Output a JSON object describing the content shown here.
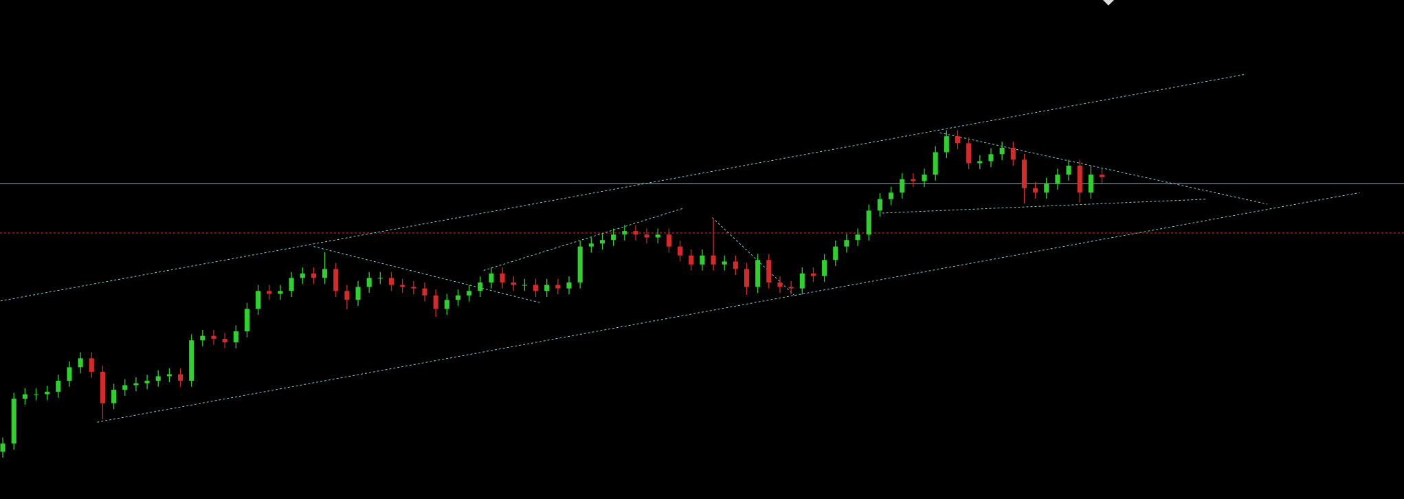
{
  "chart_data": {
    "type": "candlestick",
    "xlim": [
      -0.25,
      126.2
    ],
    "ylim": [
      0,
      100
    ],
    "up_color": "#2fd12f",
    "down_color": "#d42a2a",
    "open": [
      9.5,
      11.1,
      20.1,
      21.0,
      21.0,
      21.5,
      23.7,
      26.4,
      28.2,
      25.5,
      19.2,
      21.9,
      22.8,
      23.2,
      23.7,
      24.6,
      25.0,
      23.7,
      31.8,
      32.7,
      32.1,
      31.4,
      33.6,
      38.1,
      41.7,
      41.1,
      41.7,
      44.3,
      45.2,
      44.3,
      46.1,
      41.7,
      39.9,
      42.5,
      44.3,
      44.3,
      42.9,
      42.5,
      42.2,
      40.8,
      38.1,
      39.9,
      40.8,
      41.7,
      43.4,
      45.2,
      43.4,
      42.9,
      42.9,
      41.7,
      42.9,
      42.2,
      43.4,
      50.6,
      51.2,
      51.9,
      53.0,
      53.7,
      53.0,
      52.4,
      53.0,
      50.6,
      48.8,
      47.0,
      48.8,
      47.0,
      47.6,
      46.1,
      42.5,
      47.9,
      43.4,
      42.5,
      42.2,
      45.2,
      44.7,
      47.9,
      50.6,
      51.9,
      53.0,
      57.8,
      60.1,
      61.4,
      64.1,
      63.7,
      65.0,
      69.5,
      72.7,
      71.3,
      67.3,
      67.7,
      69.1,
      70.4,
      68.0,
      62.3,
      61.4,
      63.2,
      65.0,
      66.8,
      61.4,
      65.0
    ],
    "high": [
      12.3,
      21.3,
      22.2,
      22.2,
      22.7,
      24.9,
      27.6,
      29.4,
      29.4,
      26.7,
      23.1,
      24.0,
      24.4,
      24.9,
      25.8,
      26.2,
      26.2,
      33.0,
      33.9,
      33.9,
      33.3,
      34.8,
      39.3,
      42.9,
      42.9,
      42.9,
      45.5,
      46.4,
      46.4,
      49.5,
      47.3,
      42.9,
      43.7,
      45.5,
      45.5,
      45.5,
      44.1,
      43.7,
      43.4,
      42.0,
      41.1,
      42.0,
      42.9,
      44.6,
      46.4,
      46.4,
      44.6,
      44.1,
      44.1,
      44.1,
      44.1,
      44.6,
      51.8,
      52.4,
      53.1,
      54.2,
      54.9,
      54.9,
      54.2,
      54.2,
      54.2,
      51.8,
      50.0,
      50.0,
      56.3,
      48.8,
      48.8,
      47.3,
      49.1,
      49.1,
      44.6,
      43.7,
      46.4,
      46.4,
      49.1,
      51.8,
      53.1,
      54.2,
      59.0,
      61.3,
      62.6,
      65.3,
      65.3,
      66.2,
      70.7,
      73.9,
      73.9,
      72.5,
      68.9,
      70.3,
      71.6,
      71.6,
      69.2,
      63.5,
      64.4,
      66.2,
      68.0,
      68.0,
      66.7,
      66.2
    ],
    "low": [
      8.3,
      9.9,
      18.9,
      19.8,
      19.8,
      20.3,
      22.5,
      25.2,
      24.3,
      16.0,
      18.0,
      20.7,
      21.6,
      22.0,
      22.5,
      23.4,
      22.5,
      22.5,
      30.6,
      30.9,
      30.2,
      30.2,
      32.4,
      36.9,
      39.9,
      39.9,
      40.5,
      43.1,
      43.1,
      43.1,
      40.5,
      38.0,
      38.7,
      41.3,
      43.1,
      41.7,
      41.3,
      41.0,
      39.6,
      36.5,
      36.9,
      38.7,
      39.6,
      40.5,
      42.2,
      42.2,
      41.7,
      41.7,
      40.5,
      40.5,
      41.0,
      41.0,
      42.2,
      49.4,
      50.0,
      50.7,
      51.8,
      51.8,
      51.2,
      51.2,
      49.4,
      47.6,
      45.8,
      45.8,
      45.8,
      45.8,
      44.9,
      40.9,
      41.3,
      42.2,
      41.3,
      41.0,
      41.0,
      43.5,
      43.5,
      46.7,
      49.4,
      50.7,
      51.8,
      56.6,
      58.9,
      60.2,
      62.5,
      62.5,
      63.8,
      68.3,
      70.1,
      66.1,
      66.1,
      66.5,
      67.9,
      66.8,
      59.2,
      60.2,
      60.2,
      62.0,
      63.8,
      59.4,
      60.2,
      63.3
    ],
    "close": [
      11.1,
      20.1,
      21.0,
      21.0,
      21.5,
      23.7,
      26.4,
      28.2,
      25.5,
      19.2,
      21.9,
      22.8,
      23.2,
      23.7,
      24.6,
      25.0,
      23.7,
      31.8,
      32.7,
      32.1,
      31.4,
      33.6,
      38.1,
      41.7,
      41.1,
      41.7,
      44.3,
      45.2,
      44.3,
      46.1,
      41.7,
      39.9,
      42.5,
      44.3,
      44.3,
      42.9,
      42.5,
      42.2,
      40.8,
      38.1,
      39.9,
      40.8,
      41.7,
      43.4,
      45.2,
      43.4,
      42.9,
      42.9,
      41.7,
      42.9,
      42.2,
      43.4,
      50.6,
      51.2,
      51.9,
      53.0,
      53.7,
      53.0,
      52.4,
      53.0,
      50.6,
      48.8,
      47.0,
      48.8,
      47.0,
      47.6,
      46.1,
      42.5,
      47.9,
      43.4,
      42.5,
      42.2,
      45.2,
      44.7,
      47.9,
      50.6,
      51.9,
      53.0,
      57.8,
      60.1,
      61.4,
      64.1,
      63.7,
      65.0,
      69.5,
      72.7,
      71.3,
      67.3,
      67.7,
      69.1,
      70.4,
      68.0,
      62.3,
      61.4,
      63.2,
      65.0,
      66.8,
      61.4,
      65.0,
      64.5
    ],
    "hlines": [
      {
        "value": 63.2,
        "color": "#8fb4c8",
        "style": "solid"
      },
      {
        "value": 53.3,
        "color": "#d43a2a",
        "style": "dotted"
      }
    ],
    "trendline_color": "#7fd0dc",
    "trendlines": [
      {
        "x": [
          -0.2,
          111.9
        ],
        "values": [
          39.7,
          85.1
        ]
      },
      {
        "x": [
          8.5,
          122.2
        ],
        "values": [
          15.4,
          61.4
        ]
      },
      {
        "x": [
          28.0,
          48.5
        ],
        "values": [
          50.6,
          39.3
        ]
      },
      {
        "x": [
          43.3,
          61.2
        ],
        "values": [
          45.8,
          58.2
        ]
      },
      {
        "x": [
          63.9,
          71.3
        ],
        "values": [
          56.4,
          40.8
        ]
      },
      {
        "x": [
          84.4,
          113.9
        ],
        "values": [
          73.4,
          59.1
        ]
      },
      {
        "x": [
          79.2,
          108.5
        ],
        "values": [
          57.3,
          60.1
        ]
      }
    ]
  }
}
